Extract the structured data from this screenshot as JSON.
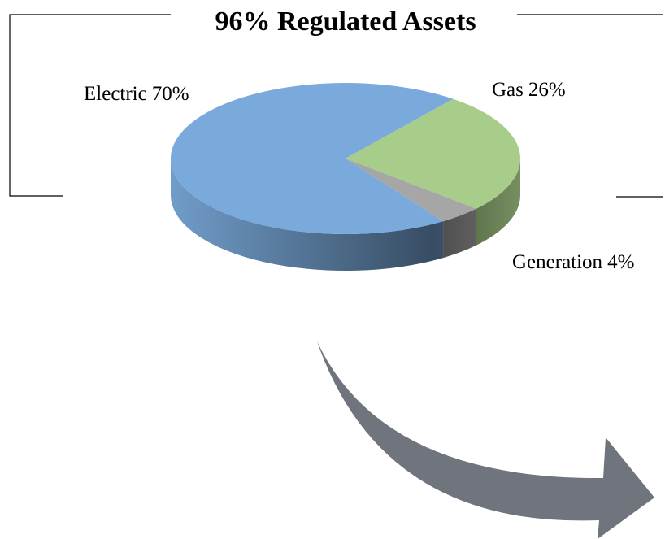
{
  "chart_data": {
    "type": "pie",
    "title": "96% Regulated Assets",
    "categories": [
      "Electric",
      "Gas",
      "Generation"
    ],
    "values": [
      70,
      26,
      4
    ],
    "value_labels": [
      "70%",
      "26%",
      "4%"
    ],
    "colors": [
      "#7aaadb",
      "#a8cd8a",
      "#a6a6a6"
    ]
  }
}
